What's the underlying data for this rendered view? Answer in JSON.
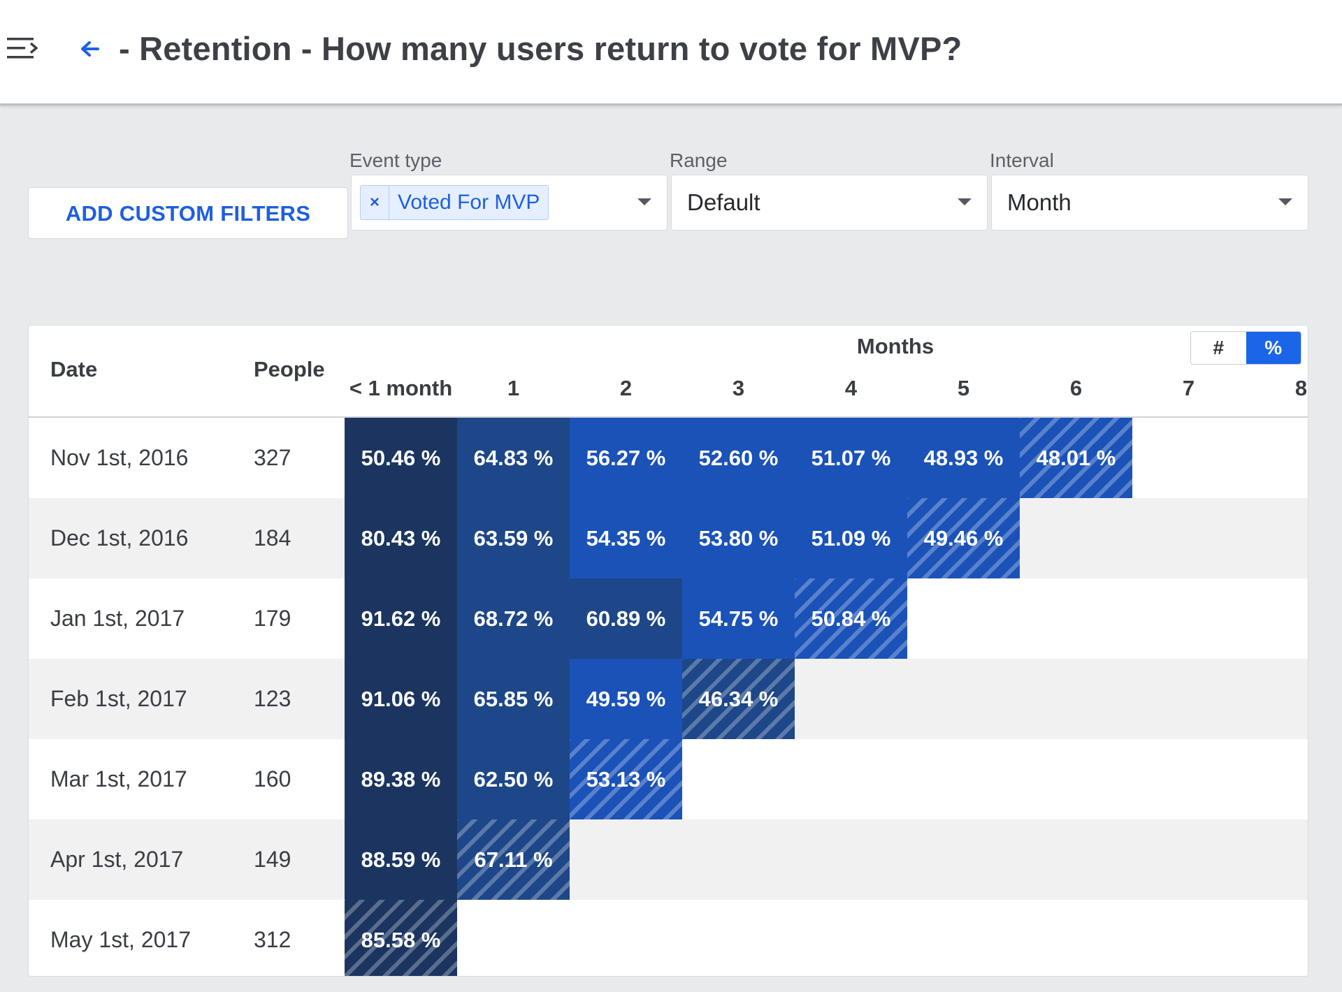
{
  "header": {
    "title": "- Retention - How many users return to vote for MVP?"
  },
  "filters": {
    "add_custom_filters_label": "ADD CUSTOM FILTERS",
    "event_type": {
      "label": "Event type",
      "chip_remove": "×",
      "chip": "Voted For MVP"
    },
    "range": {
      "label": "Range",
      "value": "Default"
    },
    "interval": {
      "label": "Interval",
      "value": "Month"
    }
  },
  "table": {
    "date_header": "Date",
    "people_header": "People",
    "months_header": "Months",
    "toggle": {
      "count": "#",
      "percent": "%"
    },
    "toggle_selected": "percent",
    "columns": [
      "< 1 month",
      "1",
      "2",
      "3",
      "4",
      "5",
      "6",
      "7",
      "8"
    ],
    "rows": [
      {
        "date": "Nov 1st, 2016",
        "people": "327",
        "values": [
          "50.46 %",
          "64.83 %",
          "56.27 %",
          "52.60 %",
          "51.07 %",
          "48.93 %",
          "48.01 %"
        ]
      },
      {
        "date": "Dec 1st, 2016",
        "people": "184",
        "values": [
          "80.43 %",
          "63.59 %",
          "54.35 %",
          "53.80 %",
          "51.09 %",
          "49.46 %"
        ]
      },
      {
        "date": "Jan 1st, 2017",
        "people": "179",
        "values": [
          "91.62 %",
          "68.72 %",
          "60.89 %",
          "54.75 %",
          "50.84 %"
        ]
      },
      {
        "date": "Feb 1st, 2017",
        "people": "123",
        "values": [
          "91.06 %",
          "65.85 %",
          "49.59 %",
          "46.34 %"
        ]
      },
      {
        "date": "Mar 1st, 2017",
        "people": "160",
        "values": [
          "89.38 %",
          "62.50 %",
          "53.13 %"
        ]
      },
      {
        "date": "Apr 1st, 2017",
        "people": "149",
        "values": [
          "88.59 %",
          "67.11 %"
        ]
      },
      {
        "date": "May 1st, 2017",
        "people": "312",
        "values": [
          "85.58 %"
        ]
      }
    ],
    "cell_colors": [
      [
        "#1b3560",
        "#1d4788",
        "#1a52b8",
        "#1a52b8",
        "#1a52b8",
        "#1a52b8",
        "#1a52b8"
      ],
      [
        "#1b3560",
        "#1d4788",
        "#1a52b8",
        "#1a52b8",
        "#1a52b8",
        "#1a52b8"
      ],
      [
        "#1b3560",
        "#1d4788",
        "#1d4788",
        "#1a52b8",
        "#1a52b8"
      ],
      [
        "#1b3560",
        "#1d4788",
        "#1a52b8",
        "#1d4788"
      ],
      [
        "#1b3560",
        "#1d4788",
        "#1a52b8"
      ],
      [
        "#1b3560",
        "#1d4788"
      ],
      [
        "#1b3560"
      ]
    ]
  },
  "icons": {
    "menu": "menu-collapse-icon",
    "back": "arrow-left-icon",
    "dropdown": "caret-down-icon"
  },
  "colors": {
    "accent": "#1d5fe1",
    "background": "#e9eaec"
  }
}
